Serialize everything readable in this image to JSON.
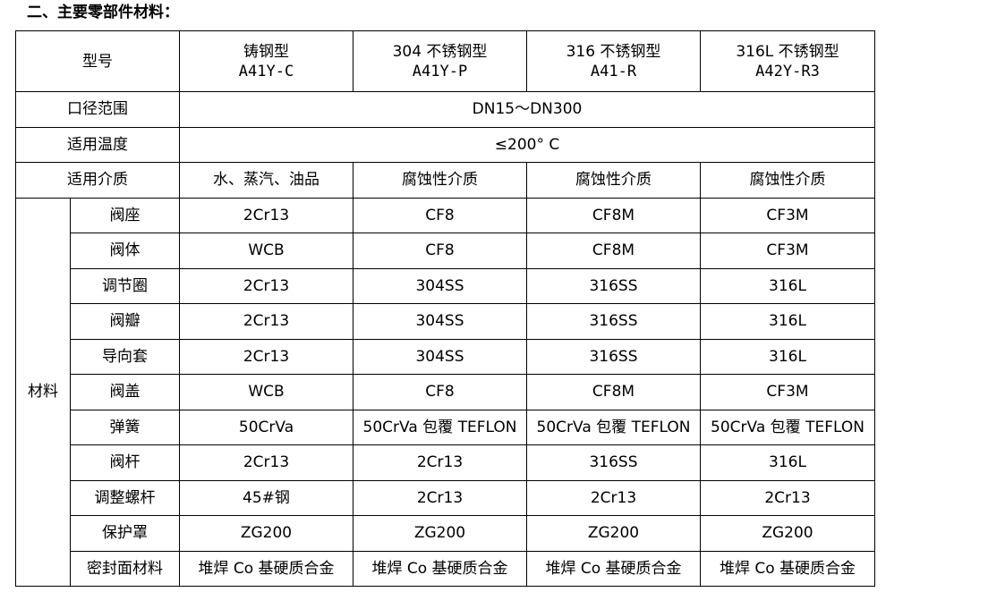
{
  "heading": "二、主要零部件材料：",
  "header": {
    "label": "型号",
    "columns": [
      {
        "line1": "铸钢型",
        "line2": "A41Y-C"
      },
      {
        "line1": "304 不锈钢型",
        "line2": "A41Y-P"
      },
      {
        "line1": "316 不锈钢型",
        "line2": "A41-R"
      },
      {
        "line1": "316L 不锈钢型",
        "line2": "A42Y-R3"
      }
    ]
  },
  "common_rows": [
    {
      "label": "口径范围",
      "value": "DN15～DN300"
    },
    {
      "label": "适用温度",
      "value": "≤200° C"
    }
  ],
  "media_row": {
    "label": "适用介质",
    "values": [
      "水、蒸汽、油品",
      "腐蚀性介质",
      "腐蚀性介质",
      "腐蚀性介质"
    ]
  },
  "materials": {
    "group_label": "材料",
    "rows": [
      {
        "part": "阀座",
        "values": [
          "2Cr13",
          "CF8",
          "CF8M",
          "CF3M"
        ]
      },
      {
        "part": "阀体",
        "values": [
          "WCB",
          "CF8",
          "CF8M",
          "CF3M"
        ]
      },
      {
        "part": "调节圈",
        "values": [
          "2Cr13",
          "304SS",
          "316SS",
          "316L"
        ]
      },
      {
        "part": "阀瓣",
        "values": [
          "2Cr13",
          "304SS",
          "316SS",
          "316L"
        ]
      },
      {
        "part": "导向套",
        "values": [
          "2Cr13",
          "304SS",
          "316SS",
          "316L"
        ]
      },
      {
        "part": "阀盖",
        "values": [
          "WCB",
          "CF8",
          "CF8M",
          "CF3M"
        ]
      },
      {
        "part": "弹簧",
        "values": [
          "50CrVa",
          "50CrVa 包覆 TEFLON",
          "50CrVa 包覆 TEFLON",
          "50CrVa 包覆 TEFLON"
        ]
      },
      {
        "part": "阀杆",
        "values": [
          "2Cr13",
          "2Cr13",
          "316SS",
          "316L"
        ]
      },
      {
        "part": "调整螺杆",
        "values": [
          "45#钢",
          "2Cr13",
          "2Cr13",
          "2Cr13"
        ]
      },
      {
        "part": "保护罩",
        "values": [
          "ZG200",
          "ZG200",
          "ZG200",
          "ZG200"
        ]
      },
      {
        "part": "密封面材料",
        "values": [
          "堆焊 Co 基硬质合金",
          "堆焊 Co 基硬质合金",
          "堆焊 Co 基硬质合金",
          "堆焊 Co 基硬质合金"
        ]
      }
    ]
  }
}
